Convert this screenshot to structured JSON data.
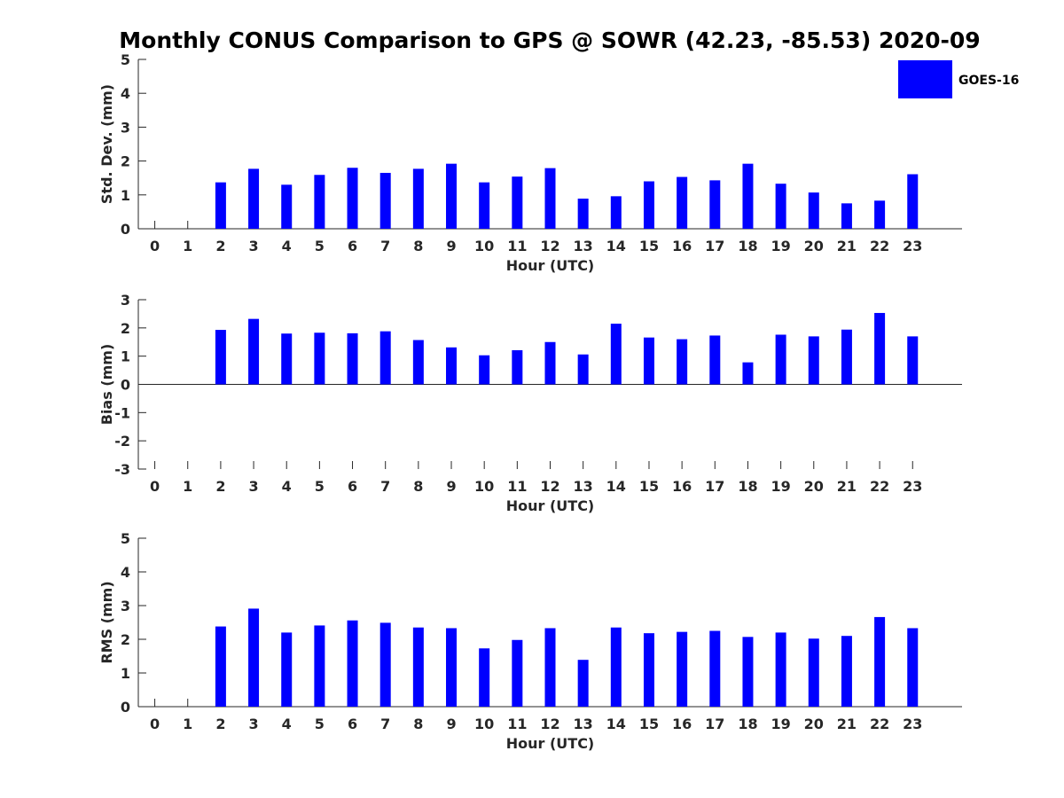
{
  "title": "Monthly CONUS Comparison to GPS @ SOWR (42.23, -85.53) 2020-09",
  "legend": {
    "label": "GOES-16",
    "color": "#0000ff",
    "placement": "top-right"
  },
  "chart_data": [
    {
      "type": "bar",
      "ylabel": "Std. Dev. (mm)",
      "xlabel": "Hour (UTC)",
      "ylim": [
        0,
        5
      ],
      "yticks": [
        0,
        1,
        2,
        3,
        4,
        5
      ],
      "categories": [
        0,
        1,
        2,
        3,
        4,
        5,
        6,
        7,
        8,
        9,
        10,
        11,
        12,
        13,
        14,
        15,
        16,
        17,
        18,
        19,
        20,
        21,
        22,
        23
      ],
      "series": [
        {
          "name": "GOES-16",
          "color": "#0000ff",
          "values": [
            null,
            null,
            1.37,
            1.77,
            1.3,
            1.59,
            1.8,
            1.65,
            1.77,
            1.92,
            1.37,
            1.54,
            1.79,
            0.89,
            0.96,
            1.4,
            1.53,
            1.43,
            1.92,
            1.33,
            1.07,
            0.75,
            0.83,
            1.61
          ]
        }
      ]
    },
    {
      "type": "bar",
      "ylabel": "Bias (mm)",
      "xlabel": "Hour (UTC)",
      "ylim": [
        -3,
        3
      ],
      "yticks": [
        -3,
        -2,
        -1,
        0,
        1,
        2,
        3
      ],
      "categories": [
        0,
        1,
        2,
        3,
        4,
        5,
        6,
        7,
        8,
        9,
        10,
        11,
        12,
        13,
        14,
        15,
        16,
        17,
        18,
        19,
        20,
        21,
        22,
        23
      ],
      "series": [
        {
          "name": "GOES-16",
          "color": "#0000ff",
          "values": [
            null,
            null,
            1.93,
            2.32,
            1.8,
            1.83,
            1.81,
            1.88,
            1.57,
            1.31,
            1.03,
            1.21,
            1.5,
            1.06,
            2.15,
            1.66,
            1.6,
            1.73,
            0.78,
            1.76,
            1.7,
            1.94,
            2.53,
            1.7
          ]
        }
      ]
    },
    {
      "type": "bar",
      "ylabel": "RMS (mm)",
      "xlabel": "Hour (UTC)",
      "ylim": [
        0,
        5
      ],
      "yticks": [
        0,
        1,
        2,
        3,
        4,
        5
      ],
      "categories": [
        0,
        1,
        2,
        3,
        4,
        5,
        6,
        7,
        8,
        9,
        10,
        11,
        12,
        13,
        14,
        15,
        16,
        17,
        18,
        19,
        20,
        21,
        22,
        23
      ],
      "series": [
        {
          "name": "GOES-16",
          "color": "#0000ff",
          "values": [
            null,
            null,
            2.38,
            2.91,
            2.2,
            2.41,
            2.56,
            2.49,
            2.35,
            2.33,
            1.73,
            1.98,
            2.33,
            1.39,
            2.35,
            2.18,
            2.22,
            2.25,
            2.07,
            2.2,
            2.02,
            2.1,
            2.66,
            2.33
          ]
        }
      ]
    }
  ]
}
